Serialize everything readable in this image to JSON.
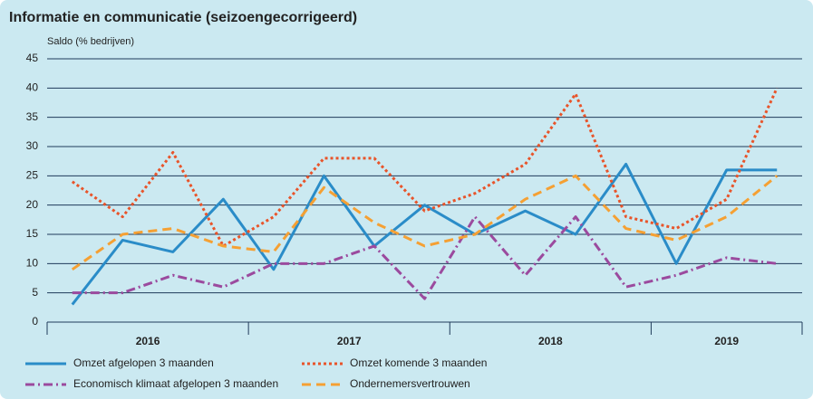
{
  "chart_data": {
    "type": "line",
    "title": "Informatie en communicatie (seizoengecorrigeerd)",
    "y_label": "Saldo (% bedrijven)",
    "groups": [
      {
        "label": "2016",
        "size": 4
      },
      {
        "label": "2017",
        "size": 4
      },
      {
        "label": "2018",
        "size": 4
      },
      {
        "label": "2019",
        "size": 3
      }
    ],
    "ylim": [
      0,
      45
    ],
    "yticks": [
      0,
      5,
      10,
      15,
      20,
      25,
      30,
      35,
      40,
      45
    ],
    "grid": true,
    "series": [
      {
        "name": "Omzet afgelopen 3 maanden",
        "color": "#2a8cc8",
        "dash": "solid",
        "values": [
          3,
          14,
          12,
          21,
          9,
          25,
          13,
          20,
          15,
          19,
          15,
          27,
          10,
          26,
          26
        ]
      },
      {
        "name": "Omzet komende 3 maanden",
        "color": "#e8542a",
        "dash": "dotted",
        "values": [
          24,
          18,
          29,
          13,
          18,
          28,
          28,
          19,
          22,
          27,
          39,
          18,
          16,
          21,
          40
        ]
      },
      {
        "name": "Economisch klimaat afgelopen 3 maanden",
        "color": "#9b4a9e",
        "dash": "dashdot",
        "values": [
          5,
          5,
          8,
          6,
          10,
          10,
          13,
          4,
          18,
          8,
          18,
          6,
          8,
          11,
          10
        ]
      },
      {
        "name": "Ondernemersvertrouwen",
        "color": "#f5a033",
        "dash": "dashed",
        "values": [
          9,
          15,
          16,
          13,
          12,
          23,
          17,
          13,
          15,
          21,
          25,
          16,
          14,
          18,
          25
        ]
      }
    ]
  }
}
